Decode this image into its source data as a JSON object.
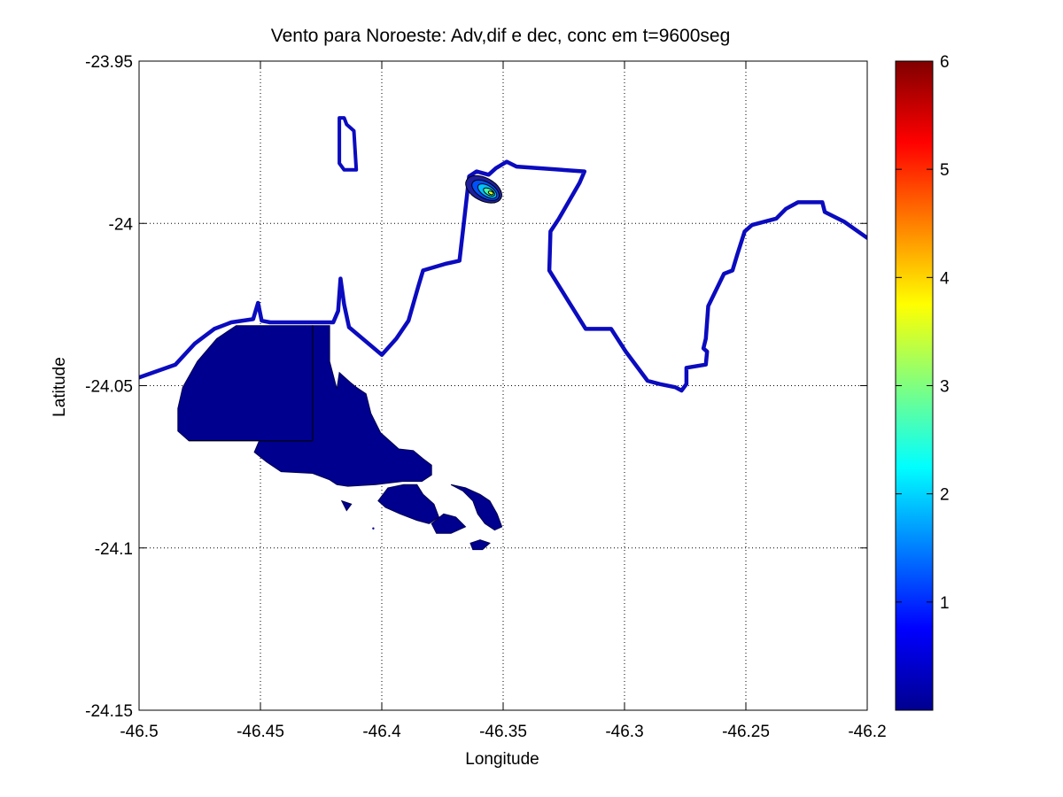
{
  "chart_data": {
    "type": "contour",
    "title": "Vento para Noroeste: Adv,dif e dec, conc em t=9600seg",
    "xlabel": "Longitude",
    "ylabel": "Latitude",
    "xlim": [
      -46.5,
      -46.2
    ],
    "ylim": [
      -24.15,
      -23.95
    ],
    "xticks": [
      -46.5,
      -46.45,
      -46.4,
      -46.35,
      -46.3,
      -46.25,
      -46.2
    ],
    "xtick_labels": [
      "-46.5",
      "-46.45",
      "-46.4",
      "-46.35",
      "-46.3",
      "-46.25",
      "-46.2"
    ],
    "yticks": [
      -23.95,
      -24,
      -24.05,
      -24.1,
      -24.15
    ],
    "ytick_labels": [
      "-23.95",
      "-24",
      "-24.05",
      "-24.1",
      "-24.15"
    ],
    "grid": true,
    "colormap": "jet",
    "colorbar": {
      "range": [
        0,
        6
      ],
      "ticks": [
        1,
        2,
        3,
        4,
        5,
        6
      ],
      "tick_labels": [
        "1",
        "2",
        "3",
        "4",
        "5",
        "6"
      ],
      "location": "right"
    },
    "coastline": [
      [
        -46.5,
        -24.0475
      ],
      [
        -46.485,
        -24.0435
      ],
      [
        -46.477,
        -24.037
      ],
      [
        -46.469,
        -24.0325
      ],
      [
        -46.462,
        -24.0305
      ],
      [
        -46.453,
        -24.0295
      ],
      [
        -46.451,
        -24.0245
      ],
      [
        -46.4495,
        -24.03
      ],
      [
        -46.446,
        -24.0305
      ],
      [
        -46.42,
        -24.0305
      ],
      [
        -46.418,
        -24.027
      ],
      [
        -46.417,
        -24.017
      ],
      [
        -46.4155,
        -24.025
      ],
      [
        -46.4135,
        -24.032
      ],
      [
        -46.4,
        -24.0405
      ],
      [
        -46.394,
        -24.0355
      ],
      [
        -46.389,
        -24.03
      ],
      [
        -46.385,
        -24.0195
      ],
      [
        -46.383,
        -24.0145
      ],
      [
        -46.374,
        -24.0125
      ],
      [
        -46.368,
        -24.0115
      ],
      [
        -46.366,
        -23.9985
      ],
      [
        -46.364,
        -23.9855
      ],
      [
        -46.361,
        -23.984
      ],
      [
        -46.356,
        -23.985
      ],
      [
        -46.353,
        -23.983
      ],
      [
        -46.3485,
        -23.981
      ],
      [
        -46.3445,
        -23.9825
      ],
      [
        -46.3165,
        -23.984
      ],
      [
        -46.3185,
        -23.9875
      ],
      [
        -46.327,
        -23.9985
      ],
      [
        -46.3305,
        -24.0025
      ],
      [
        -46.331,
        -24.0145
      ],
      [
        -46.3235,
        -24.0235
      ],
      [
        -46.316,
        -24.0325
      ],
      [
        -46.3055,
        -24.0325
      ],
      [
        -46.2995,
        -24.0395
      ],
      [
        -46.2905,
        -24.0485
      ],
      [
        -46.2855,
        -24.0495
      ],
      [
        -46.279,
        -24.0505
      ],
      [
        -46.2765,
        -24.0515
      ],
      [
        -46.2745,
        -24.0495
      ],
      [
        -46.2745,
        -24.0445
      ],
      [
        -46.2665,
        -24.0435
      ],
      [
        -46.266,
        -24.0395
      ],
      [
        -46.2675,
        -24.0385
      ],
      [
        -46.2665,
        -24.0355
      ],
      [
        -46.2655,
        -24.0255
      ],
      [
        -46.259,
        -24.0155
      ],
      [
        -46.2555,
        -24.0145
      ],
      [
        -46.2535,
        -24.0095
      ],
      [
        -46.2505,
        -24.0025
      ],
      [
        -46.2475,
        -24.0005
      ],
      [
        -46.2375,
        -23.9985
      ],
      [
        -46.2335,
        -23.9955
      ],
      [
        -46.2285,
        -23.9935
      ],
      [
        -46.2185,
        -23.9935
      ],
      [
        -46.2175,
        -23.9965
      ],
      [
        -46.2095,
        -23.9995
      ],
      [
        -46.2,
        -24.0045
      ]
    ],
    "island": [
      [
        -46.4175,
        -23.9675
      ],
      [
        -46.4155,
        -23.9675
      ],
      [
        -46.4145,
        -23.9695
      ],
      [
        -46.4115,
        -23.9715
      ],
      [
        -46.4105,
        -23.9835
      ],
      [
        -46.4155,
        -23.9835
      ],
      [
        -46.4175,
        -23.9815
      ]
    ],
    "plume_source": {
      "lon": -46.358,
      "lat": -23.9895,
      "max_concentration_approx": 3.5
    },
    "contour_levels": [
      0.05,
      0.5,
      1.5,
      2.5,
      3.5
    ],
    "low_concentration_region": {
      "lon_range": [
        -46.484,
        -46.351
      ],
      "lat_range": [
        -24.1005,
        -24.0315
      ]
    }
  }
}
